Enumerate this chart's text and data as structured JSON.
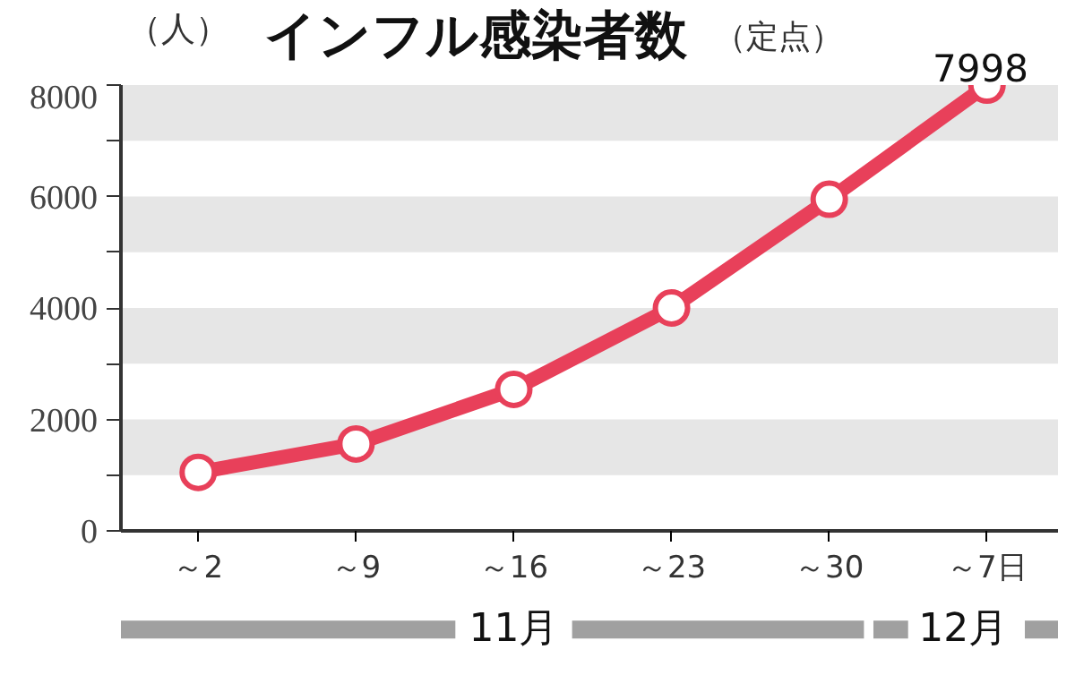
{
  "chart_data": {
    "type": "line",
    "title": "インフル感染者数",
    "subtitle": "（定点）",
    "ylabel": "（人）",
    "categories": [
      "～2",
      "～9",
      "～16",
      "～23",
      "～30",
      "～7日"
    ],
    "series": [
      {
        "color": "#e8405a",
        "values": [
          1050,
          1560,
          2540,
          4000,
          5950,
          7998
        ],
        "value_labels": [
          null,
          null,
          null,
          null,
          null,
          "7998"
        ]
      }
    ],
    "ylim": [
      0,
      8000
    ],
    "yticks": [
      0,
      {
        "value": 1000,
        "label": null
      },
      2000,
      {
        "value": 3000,
        "label": null
      },
      4000,
      {
        "value": 5000,
        "label": null
      },
      6000,
      {
        "value": 7000,
        "label": null
      },
      8000
    ],
    "bands": [
      {
        "axis": "y",
        "from": 1000,
        "to": 2000,
        "color": "#e6e6e6"
      },
      {
        "axis": "y",
        "from": 3000,
        "to": 4000,
        "color": "#e6e6e6"
      },
      {
        "axis": "y",
        "from": 5000,
        "to": 6000,
        "color": "#e6e6e6"
      },
      {
        "axis": "y",
        "from": 7000,
        "to": 8000,
        "color": "#e6e6e6"
      }
    ],
    "annotations": [
      "11月",
      "12月"
    ],
    "marker": "circle",
    "line_style": "solid",
    "grid": false
  }
}
